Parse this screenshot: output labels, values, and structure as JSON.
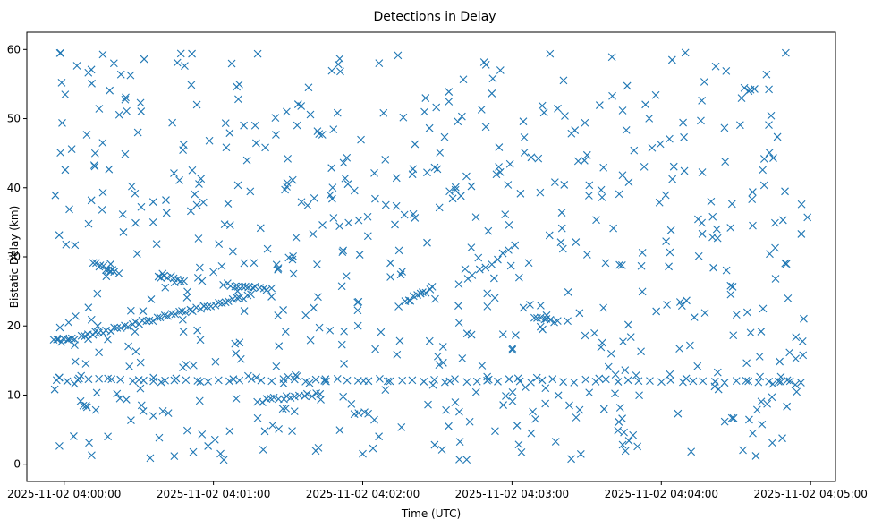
{
  "chart_data": {
    "type": "scatter",
    "title": "Detections in Delay",
    "xlabel": "Time (UTC)",
    "ylabel": "Bistatic Delay (km)",
    "marker": "x",
    "color": "#1f77b4",
    "grid": false,
    "x_ticks": [
      "2025-11-02 04:00:00",
      "2025-11-02 04:01:00",
      "2025-11-02 04:02:00",
      "2025-11-02 04:03:00",
      "2025-11-02 04:04:00",
      "2025-11-02 04:05:00"
    ],
    "y_ticks": [
      "0",
      "10",
      "20",
      "30",
      "40",
      "50",
      "60"
    ],
    "xlim": [
      "2025-11-02 03:59:45",
      "2025-11-02 04:05:10"
    ],
    "ylim": [
      -2.5,
      62.5
    ],
    "x_start": "2025-11-02 03:59:56",
    "x_end": "2025-11-02 04:04:59",
    "tracks": [
      {
        "t0": "2025-11-02 03:59:56",
        "t1": "2025-11-02 04:00:04",
        "y0": 17.8,
        "y1": 18.1,
        "n": 9
      },
      {
        "t0": "2025-11-02 04:00:07",
        "t1": "2025-11-02 04:01:15",
        "y0": 18.4,
        "y1": 24.4,
        "n": 48
      },
      {
        "t0": "2025-11-02 04:00:12",
        "t1": "2025-11-02 04:00:20",
        "y0": 29.0,
        "y1": 27.8,
        "n": 10
      },
      {
        "t0": "2025-11-02 04:00:38",
        "t1": "2025-11-02 04:00:48",
        "y0": 27.3,
        "y1": 26.6,
        "n": 9
      },
      {
        "t0": "2025-11-02 04:01:04",
        "t1": "2025-11-02 04:01:23",
        "y0": 26.1,
        "y1": 25.3,
        "n": 14
      },
      {
        "t0": "2025-11-02 04:01:18",
        "t1": "2025-11-02 04:01:43",
        "y0": 9.1,
        "y1": 10.2,
        "n": 16
      },
      {
        "t0": "2025-11-02 04:02:17",
        "t1": "2025-11-02 04:02:28",
        "y0": 23.4,
        "y1": 25.5,
        "n": 10
      },
      {
        "t0": "2025-11-02 04:02:42",
        "t1": "2025-11-02 04:03:01",
        "y0": 26.8,
        "y1": 31.5,
        "n": 9
      },
      {
        "t0": "2025-11-02 04:03:09",
        "t1": "2025-11-02 04:03:18",
        "y0": 21.3,
        "y1": 20.6,
        "n": 8
      },
      {
        "t0": "2025-11-02 03:59:57",
        "t1": "2025-11-02 04:04:56",
        "y0": 12.2,
        "y1": 12.0,
        "n": 70
      }
    ],
    "points": [
      [
        "2025-11-02 03:59:58",
        12.5
      ],
      [
        "2025-11-02 04:00:06",
        12.4
      ],
      [
        "2025-11-02 04:00:30",
        12.2
      ],
      [
        "2025-11-02 04:00:45",
        12.4
      ],
      [
        "2025-11-02 04:01:08",
        12.3
      ],
      [
        "2025-11-02 04:01:30",
        12.6
      ],
      [
        "2025-11-02 04:01:45",
        12.3
      ],
      [
        "2025-11-02 04:02:10",
        12.0
      ],
      [
        "2025-11-02 04:02:35",
        12.0
      ],
      [
        "2025-11-02 04:02:50",
        12.1
      ],
      [
        "2025-11-02 04:03:10",
        12.5
      ],
      [
        "2025-11-02 04:03:35",
        12.4
      ],
      [
        "2025-11-02 04:04:10",
        12.4
      ],
      [
        "2025-11-02 04:04:35",
        12.0
      ],
      [
        "2025-11-02 04:04:48",
        11.9
      ],
      [
        "2025-11-02 04:00:49",
        14.4
      ],
      [
        "2025-11-02 04:00:52",
        14.3
      ],
      [
        "2025-11-02 04:02:40",
        15.3
      ],
      [
        "2025-11-02 04:01:00",
        27.8
      ],
      [
        "2025-11-02 04:01:42",
        24.2
      ],
      [
        "2025-11-02 04:00:22",
        27.6
      ],
      [
        "2025-11-02 03:59:59",
        55.2
      ],
      [
        "2025-11-02 04:00:20",
        58.0
      ],
      [
        "2025-11-02 04:04:50",
        59.5
      ],
      [
        "2025-11-02 04:01:10",
        52.8
      ],
      [
        "2025-11-02 04:02:30",
        42.7
      ],
      [
        "2025-11-02 04:03:20",
        36.4
      ],
      [
        "2025-11-02 04:04:20",
        38.0
      ],
      [
        "2025-11-02 04:04:45",
        44.3
      ],
      [
        "2025-11-02 04:02:05",
        38.4
      ],
      [
        "2025-11-02 04:01:40",
        33.3
      ],
      [
        "2025-11-02 04:03:05",
        45.1
      ],
      [
        "2025-11-02 04:00:55",
        41.3
      ],
      [
        "2025-11-02 04:04:38",
        1.2
      ],
      [
        "2025-11-02 04:02:00",
        1.5
      ],
      [
        "2025-11-02 04:03:45",
        4.6
      ],
      [
        "2025-11-02 04:00:10",
        3.1
      ],
      [
        "2025-11-02 04:04:12",
        1.8
      ],
      [
        "2025-11-02 04:01:20",
        2.1
      ]
    ],
    "noise_count": 620,
    "noise_seed": 7
  }
}
